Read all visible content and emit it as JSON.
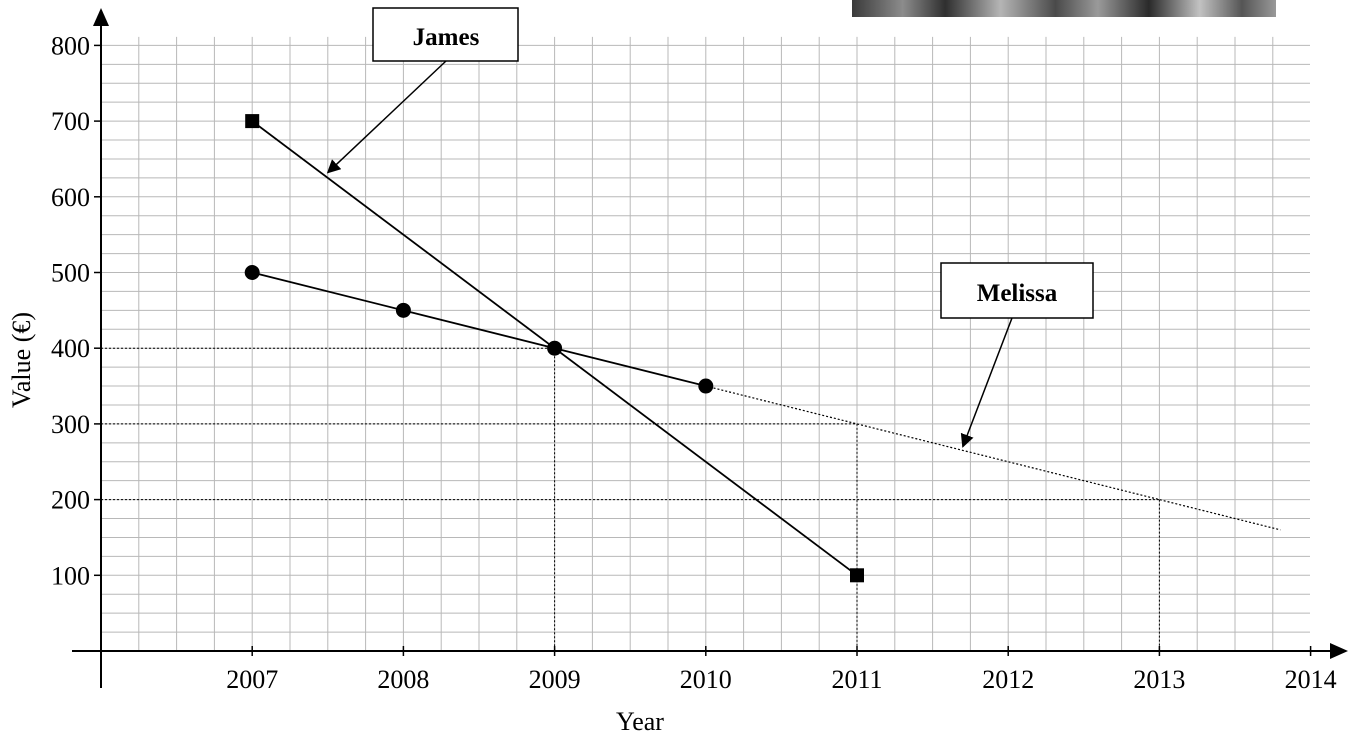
{
  "chart_data": {
    "type": "line",
    "xlabel": "Year",
    "ylabel": "Value (€)",
    "xlim": [
      2006,
      2014.2
    ],
    "ylim": [
      0,
      810
    ],
    "x_ticks": [
      2007,
      2008,
      2009,
      2010,
      2011,
      2012,
      2013,
      2014
    ],
    "y_ticks": [
      100,
      200,
      300,
      400,
      500,
      600,
      700,
      800
    ],
    "x_tick_labels": [
      "2007",
      "2008",
      "2009",
      "2010",
      "2011",
      "2012",
      "2013",
      "2014"
    ],
    "y_tick_labels": [
      "100",
      "200",
      "300",
      "400",
      "500",
      "600",
      "700",
      "800"
    ],
    "grid": true,
    "series": [
      {
        "name": "James",
        "marker": "square",
        "x": [
          2007,
          2011
        ],
        "y": [
          700,
          100
        ]
      },
      {
        "name": "Melissa",
        "marker": "circle",
        "x": [
          2007,
          2008,
          2009,
          2010
        ],
        "y": [
          500,
          450,
          400,
          350
        ],
        "extension": {
          "style": "dotted",
          "x": [
            2010,
            2013.8
          ],
          "y": [
            350,
            160
          ]
        }
      }
    ],
    "guide_lines": [
      {
        "from": [
          2006,
          400
        ],
        "to": [
          2009,
          400
        ],
        "corner_to": [
          2009,
          0
        ]
      },
      {
        "from": [
          2006,
          300
        ],
        "to": [
          2011,
          300
        ],
        "corner_to": [
          2011,
          0
        ]
      },
      {
        "from": [
          2006,
          200
        ],
        "to": [
          2013,
          200
        ],
        "corner_to": [
          2013,
          0
        ]
      }
    ],
    "annotations": [
      {
        "text": "James",
        "points_to": [
          2007.5,
          632
        ]
      },
      {
        "text": "Melissa",
        "points_to": [
          2011.7,
          270
        ]
      }
    ]
  }
}
